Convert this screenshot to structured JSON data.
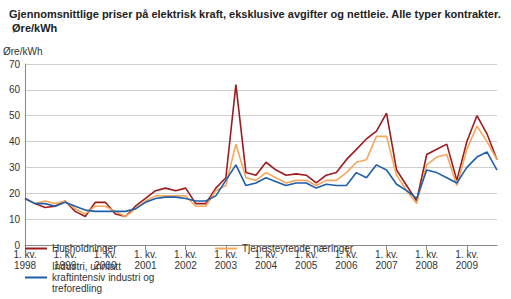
{
  "chart_data": {
    "type": "line",
    "title": "Gjennomsnittlige priser på elektrisk kraft, eksklusive avgifter og nettleie. Alle typer kontrakter. Øre/kWh",
    "y_label": "Øre/kWh",
    "categories": [
      "1. kv. 1998",
      null,
      null,
      null,
      "1. kv. 1999",
      null,
      null,
      null,
      "1. kv. 2000",
      null,
      null,
      null,
      "1. kv. 2001",
      null,
      null,
      null,
      "1. kv. 2002",
      null,
      null,
      null,
      "1. kv. 2003",
      null,
      null,
      null,
      "1. kv. 2004",
      null,
      null,
      null,
      "1. kv. 2005",
      null,
      null,
      null,
      "1. kv. 2006",
      null,
      null,
      null,
      "1. kv. 2007",
      null,
      null,
      null,
      "1. kv. 2008",
      null,
      null,
      null,
      "1. kv. 2009",
      null,
      null,
      null
    ],
    "series": [
      {
        "name": "Husholdninger",
        "color": "#9b1b1e",
        "values": [
          18,
          16,
          14.5,
          15,
          17,
          13,
          11,
          16.5,
          16.5,
          12,
          11,
          15,
          18,
          21,
          22,
          21,
          22,
          16,
          16,
          22,
          26,
          62,
          28,
          27,
          32,
          29,
          27,
          27.5,
          27,
          24,
          27,
          28,
          33,
          37,
          41,
          44,
          51,
          29,
          23,
          17,
          35,
          37,
          39,
          25,
          40,
          50,
          43,
          33
        ]
      },
      {
        "name": "Tjenesteytende næringer",
        "color": "#f5a85a",
        "values": [
          18,
          16,
          17,
          16,
          17,
          14,
          12,
          15,
          15,
          13,
          11,
          14,
          17,
          19,
          19,
          19,
          19,
          15,
          15,
          21,
          23,
          39,
          26,
          25,
          28,
          26,
          24,
          25,
          25,
          23,
          25,
          25,
          28,
          32,
          33,
          42,
          42,
          27,
          21,
          16,
          31,
          34,
          35,
          23,
          37,
          46,
          40,
          33
        ]
      },
      {
        "name": "Industri, unntatt kraftintensiv industri og treforedling",
        "color": "#1f5fa8",
        "values": [
          18,
          16,
          16,
          15,
          16.5,
          15,
          13.5,
          13,
          13,
          13,
          13,
          14,
          16.5,
          18,
          18.5,
          18.5,
          18,
          17,
          17,
          19,
          25,
          31,
          23,
          24,
          26,
          24.5,
          23,
          24,
          24,
          22,
          23.5,
          23,
          23,
          28,
          26,
          31,
          29,
          23.5,
          21,
          18,
          29,
          28,
          26,
          24,
          30,
          34,
          36,
          29
        ]
      }
    ],
    "ylim": [
      0,
      70
    ],
    "yticks": [
      0,
      10,
      20,
      30,
      40,
      50,
      60,
      70
    ],
    "grid": true,
    "legend": "bottom"
  }
}
